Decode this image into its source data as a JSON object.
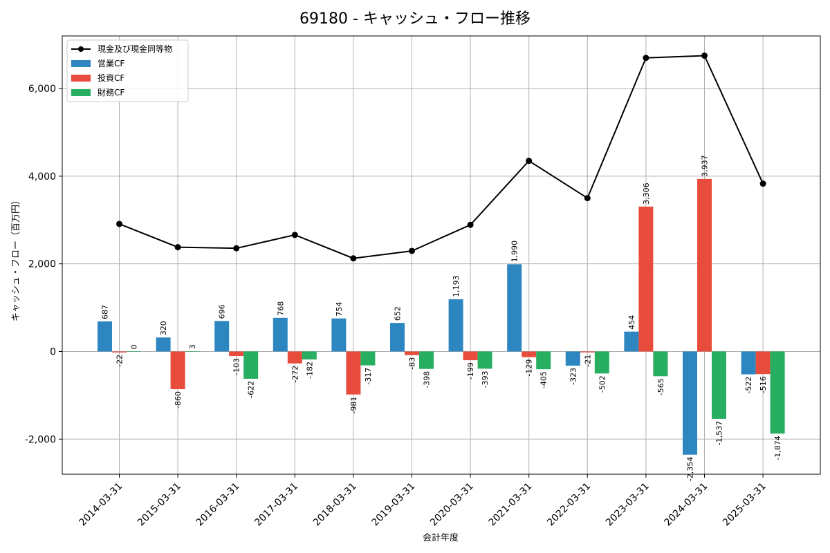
{
  "chart_data": {
    "type": "bar",
    "title": "69180 - キャッシュ・フロー推移",
    "xlabel": "会計年度",
    "ylabel": "キャッシュ・フロー（百万円）",
    "ylim": [
      -2800,
      7200
    ],
    "yticks": [
      -2000,
      0,
      2000,
      4000,
      6000
    ],
    "ytick_labels": [
      "-2,000",
      "0",
      "2,000",
      "4,000",
      "6,000"
    ],
    "grid": true,
    "legend_position": "top-left",
    "categories": [
      "2014-03-31",
      "2015-03-31",
      "2016-03-31",
      "2017-03-31",
      "2018-03-31",
      "2019-03-31",
      "2020-03-31",
      "2021-03-31",
      "2022-03-31",
      "2023-03-31",
      "2024-03-31",
      "2025-03-31"
    ],
    "series": [
      {
        "name": "営業CF",
        "type": "bar",
        "color": "#2e86c1",
        "values": [
          687,
          320,
          696,
          768,
          754,
          652,
          1193,
          1990,
          -323,
          454,
          -2354,
          -522
        ],
        "labels": [
          "687",
          "320",
          "696",
          "768",
          "754",
          "652",
          "1,193",
          "1,990",
          "-323",
          "454",
          "-2,354",
          "-522"
        ]
      },
      {
        "name": "投資CF",
        "type": "bar",
        "color": "#e74c3c",
        "values": [
          -22,
          -860,
          -103,
          -272,
          -981,
          -83,
          -199,
          -129,
          -21,
          3306,
          3937,
          -516
        ],
        "labels": [
          "-22",
          "-860",
          "-103",
          "-272",
          "-981",
          "-83",
          "-199",
          "-129",
          "-21",
          "3,306",
          "3,937",
          "-516"
        ]
      },
      {
        "name": "財務CF",
        "type": "bar",
        "color": "#27ae60",
        "values": [
          0,
          3,
          -622,
          -182,
          -317,
          -398,
          -393,
          -405,
          -502,
          -565,
          -1537,
          -1874
        ],
        "labels": [
          "0",
          "3",
          "-622",
          "-182",
          "-317",
          "-398",
          "-393",
          "-405",
          "-502",
          "-565",
          "-1,537",
          "-1,874"
        ]
      },
      {
        "name": "現金及び現金同等物",
        "type": "line",
        "color": "#000000",
        "values": [
          2910,
          2380,
          2355,
          2660,
          2125,
          2295,
          2890,
          4350,
          3500,
          6700,
          6750,
          3830
        ]
      }
    ]
  }
}
